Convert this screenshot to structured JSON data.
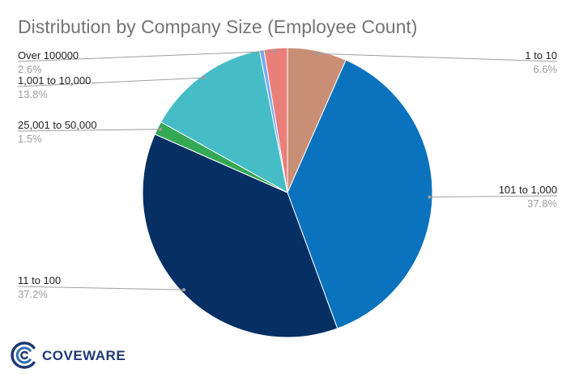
{
  "chart_data": {
    "type": "pie",
    "title": "Distribution by Company Size (Employee Count)",
    "slices": [
      {
        "label": "1 to 10",
        "value": 6.6,
        "display": "6.6%",
        "color": "#c98f76"
      },
      {
        "label": "101 to 1,000",
        "value": 37.8,
        "display": "37.8%",
        "color": "#0b72bd"
      },
      {
        "label": "11 to 100",
        "value": 37.2,
        "display": "37.2%",
        "color": "#062f64"
      },
      {
        "label": "25,001 to 50,000",
        "value": 1.5,
        "display": "1.5%",
        "color": "#34a853"
      },
      {
        "label": "1,001 to 10,000",
        "value": 13.8,
        "display": "13.8%",
        "color": "#46bdc6"
      },
      {
        "label": "Over 100000",
        "value": 0.5,
        "display": "",
        "color": "#7baaf7"
      },
      {
        "label": "Over 100000",
        "value": 2.6,
        "display": "2.6%",
        "color": "#ea7e78"
      }
    ],
    "legend": "none"
  },
  "logo": {
    "text": "COVEWARE",
    "color": "#1f3a73"
  }
}
